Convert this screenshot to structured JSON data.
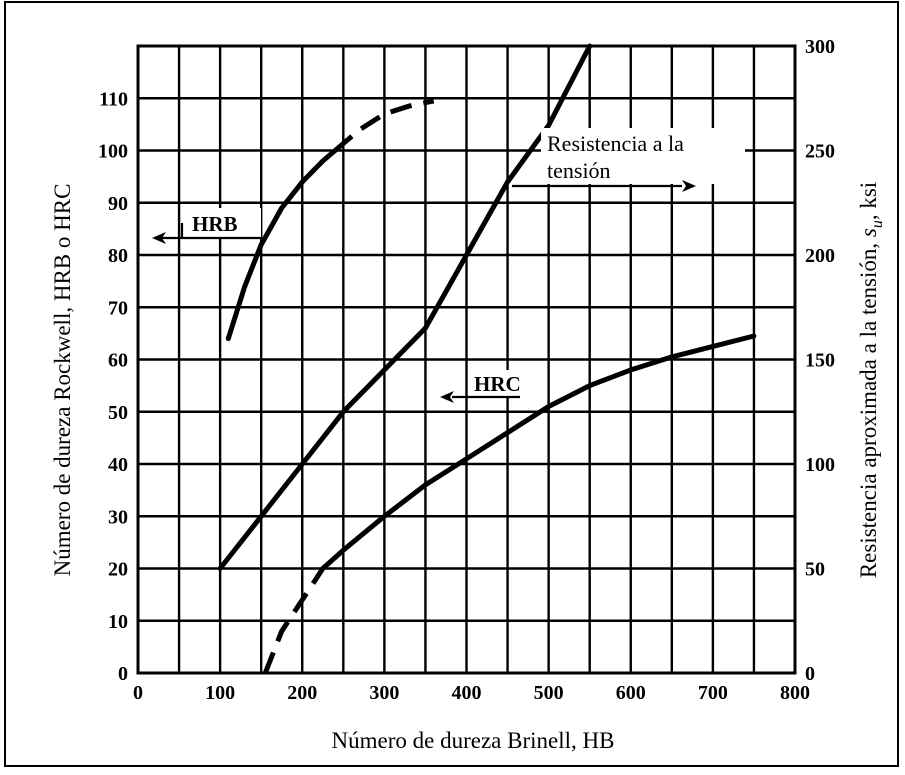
{
  "chart_data": {
    "type": "line",
    "xlabel": "Número de dureza Brinell, HB",
    "ylabel_left": "Número de dureza Rockwell, HRB o HRC",
    "ylabel_right_prefix": "Resistencia aproximada a la tensión, ",
    "ylabel_right_symbol": "s",
    "ylabel_right_subscript": "u",
    "ylabel_right_suffix": ", ksi",
    "xlim": [
      0,
      800
    ],
    "ylim_left": [
      0,
      120
    ],
    "ylim_right": [
      0,
      300
    ],
    "x_ticks": [
      "0",
      "100",
      "200",
      "300",
      "400",
      "500",
      "600",
      "700",
      "800"
    ],
    "y_left_ticks": [
      "0",
      "10",
      "20",
      "30",
      "40",
      "50",
      "60",
      "70",
      "80",
      "90",
      "100",
      "110"
    ],
    "y_left_tick_values": [
      0,
      10,
      20,
      30,
      40,
      50,
      60,
      70,
      80,
      90,
      100,
      110
    ],
    "y_right_ticks": [
      "0",
      "50",
      "100",
      "150",
      "200",
      "250",
      "300"
    ],
    "y_right_tick_values": [
      0,
      50,
      100,
      150,
      200,
      250,
      300
    ],
    "grid": true,
    "series": [
      {
        "name": "HRB",
        "axis": "left",
        "solid": [
          [
            110,
            64
          ],
          [
            130,
            74
          ],
          [
            150,
            82
          ],
          [
            175,
            89
          ],
          [
            200,
            94
          ],
          [
            225,
            98
          ],
          [
            240,
            100
          ]
        ],
        "dashed": [
          [
            240,
            100
          ],
          [
            270,
            104
          ],
          [
            300,
            107
          ],
          [
            330,
            108.5
          ],
          [
            360,
            109.5
          ]
        ]
      },
      {
        "name": "Resistencia a la tensión",
        "axis": "right",
        "solid": [
          [
            100,
            50
          ],
          [
            150,
            75
          ],
          [
            200,
            100
          ],
          [
            250,
            125
          ],
          [
            300,
            145
          ],
          [
            350,
            165
          ],
          [
            400,
            200
          ],
          [
            450,
            235
          ],
          [
            500,
            262
          ],
          [
            550,
            300
          ]
        ]
      },
      {
        "name": "HRC",
        "axis": "left",
        "dashed": [
          [
            155,
            0
          ],
          [
            175,
            8
          ],
          [
            200,
            14
          ],
          [
            225,
            20
          ]
        ],
        "solid": [
          [
            225,
            20
          ],
          [
            250,
            23.5
          ],
          [
            300,
            30
          ],
          [
            350,
            36
          ],
          [
            400,
            41
          ],
          [
            450,
            46
          ],
          [
            500,
            51
          ],
          [
            550,
            55
          ],
          [
            600,
            58
          ],
          [
            650,
            60.5
          ],
          [
            700,
            62.5
          ],
          [
            750,
            64.5
          ]
        ]
      }
    ],
    "annotations": {
      "hrb_label": "HRB",
      "hrc_label": "HRC",
      "tensile_line1": "Resistencia a la",
      "tensile_line2": "tensión"
    }
  }
}
